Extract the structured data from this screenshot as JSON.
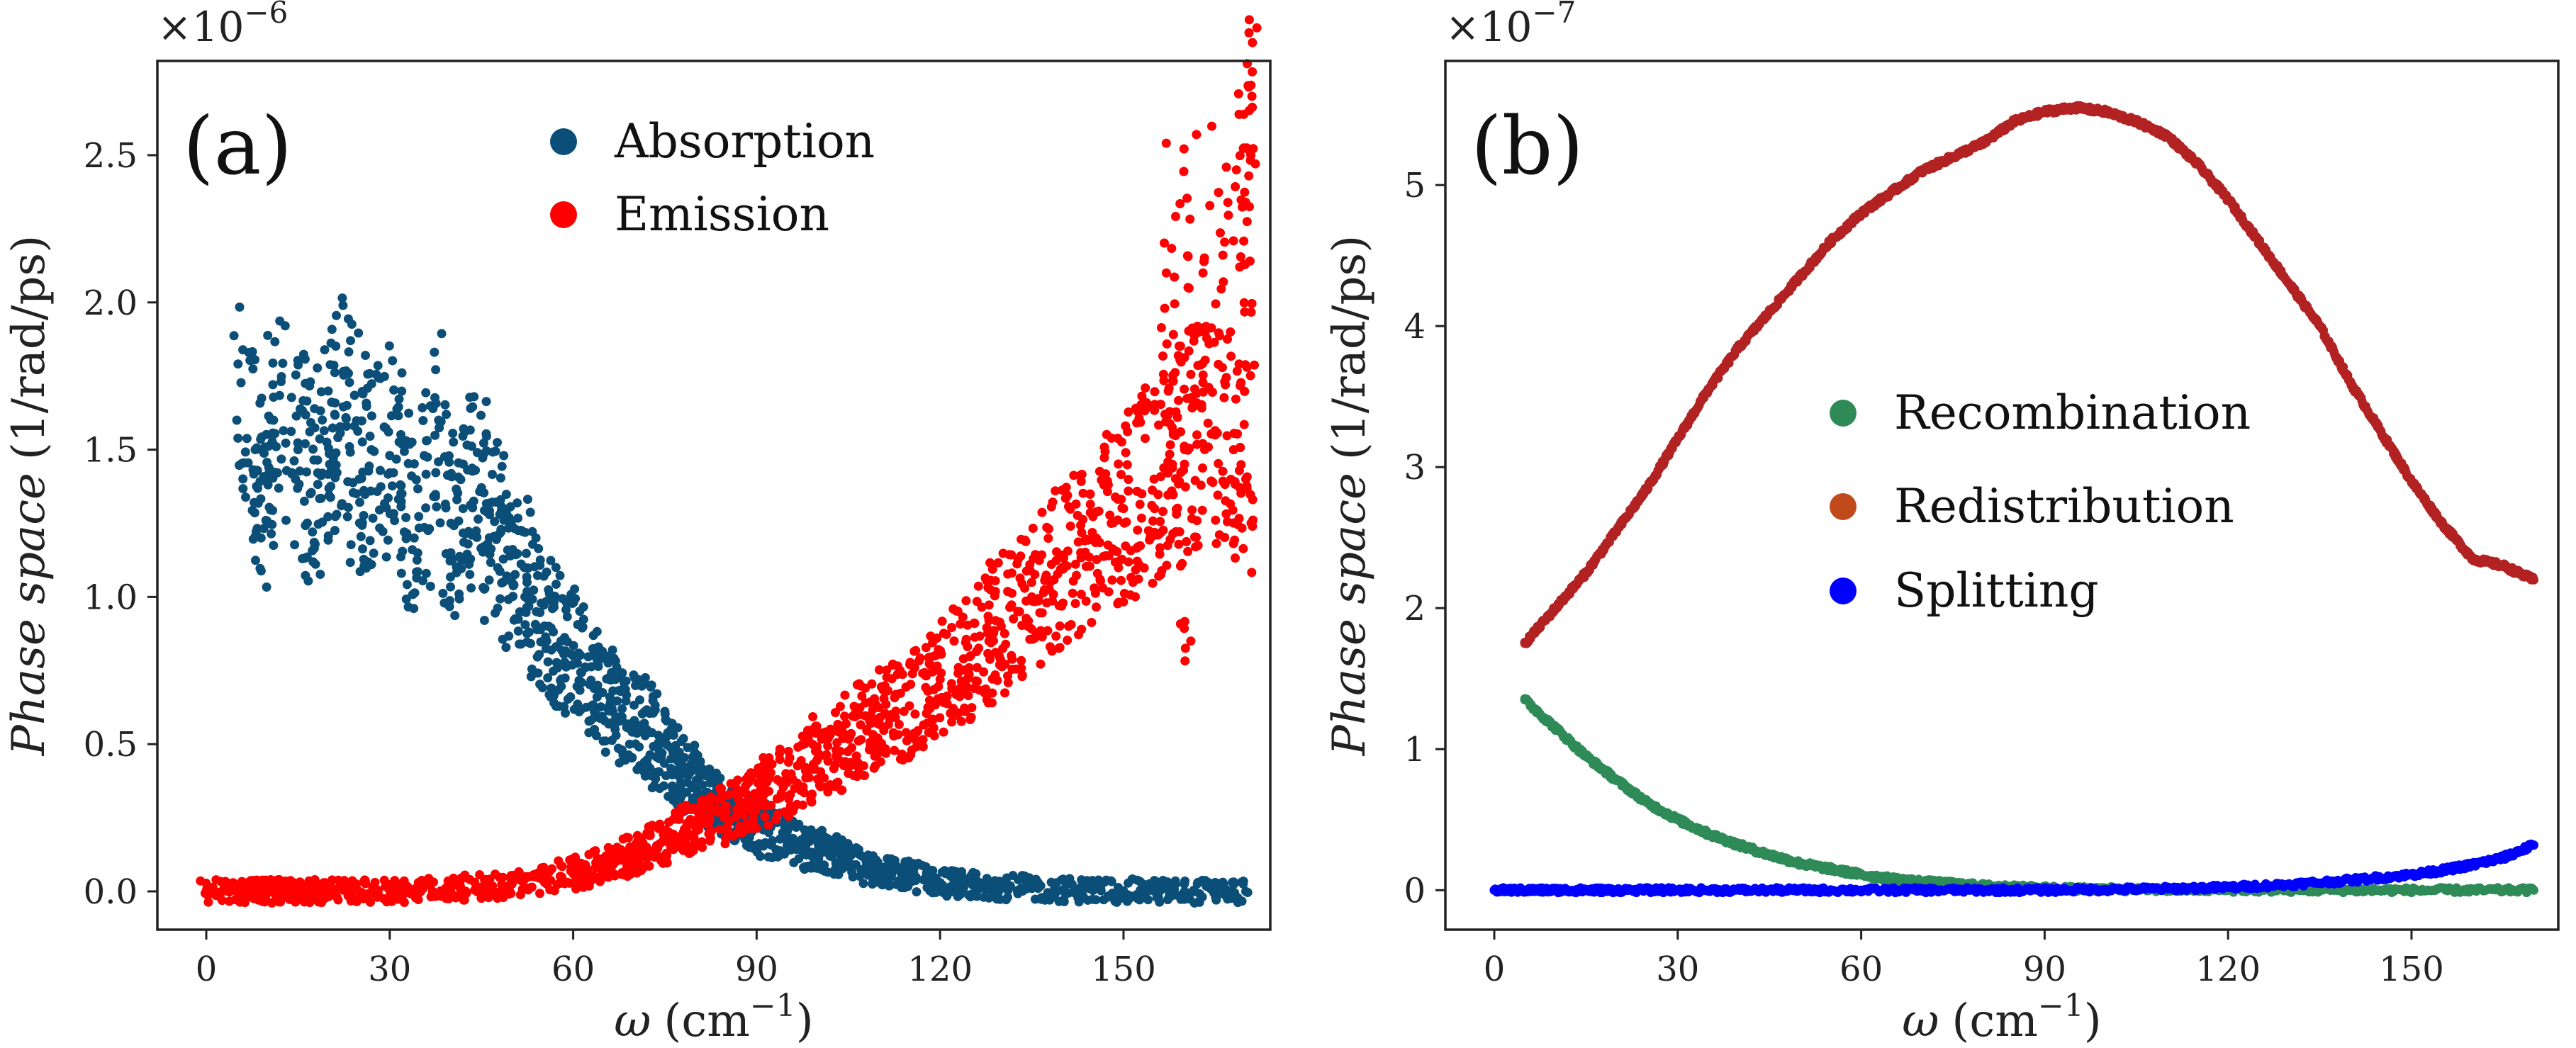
{
  "chart_data": [
    {
      "type": "scatter",
      "panel_label": "(a)",
      "exponent_label": "×10",
      "exponent_power": "−6",
      "xlabel_symbol": "ω",
      "xlabel_unit": "(cm",
      "xlabel_unit_power": "−1",
      "xlabel_close": ")",
      "ylabel_italic": "Phase space",
      "ylabel_unit": "(1/rad/ps)",
      "xlim": [
        -8,
        174
      ],
      "ylim": [
        -0.13,
        2.82
      ],
      "x_ticks": [
        0,
        30,
        60,
        90,
        120,
        150
      ],
      "x_tick_labels": [
        "0",
        "30",
        "60",
        "90",
        "120",
        "150"
      ],
      "y_ticks": [
        0,
        0.5,
        1.0,
        1.5,
        2.0,
        2.5
      ],
      "y_tick_labels": [
        "0.0",
        "0.5",
        "1.0",
        "1.5",
        "2.0",
        "2.5"
      ],
      "legend_position": "top-center",
      "series": [
        {
          "name": "Absorption",
          "color": "#0b4f79",
          "points": [
            [
              5,
              1.6
            ],
            [
              8,
              1.5
            ],
            [
              10,
              1.25
            ],
            [
              11,
              1.6
            ],
            [
              15,
              1.5
            ],
            [
              17,
              1.35
            ],
            [
              19,
              1.42
            ],
            [
              21,
              1.62
            ],
            [
              23,
              1.65
            ],
            [
              25,
              1.4
            ],
            [
              27,
              1.5
            ],
            [
              30,
              1.48
            ],
            [
              32,
              1.35
            ],
            [
              34,
              1.2
            ],
            [
              38,
              1.6
            ],
            [
              40,
              1.25
            ],
            [
              42,
              1.3
            ],
            [
              44,
              1.43
            ],
            [
              46,
              1.18
            ],
            [
              48,
              1.28
            ],
            [
              50,
              1.05
            ],
            [
              52,
              1.1
            ],
            [
              54,
              0.95
            ],
            [
              56,
              0.9
            ],
            [
              58,
              0.85
            ],
            [
              60,
              0.8
            ],
            [
              62,
              0.76
            ],
            [
              64,
              0.7
            ],
            [
              66,
              0.66
            ],
            [
              68,
              0.62
            ],
            [
              70,
              0.58
            ],
            [
              72,
              0.55
            ],
            [
              74,
              0.5
            ],
            [
              76,
              0.45
            ],
            [
              78,
              0.4
            ],
            [
              80,
              0.36
            ],
            [
              82,
              0.32
            ],
            [
              84,
              0.29
            ],
            [
              86,
              0.26
            ],
            [
              88,
              0.24
            ],
            [
              90,
              0.22
            ],
            [
              92,
              0.2
            ],
            [
              95,
              0.17
            ],
            [
              98,
              0.15
            ],
            [
              100,
              0.14
            ],
            [
              102,
              0.12
            ],
            [
              105,
              0.1
            ],
            [
              108,
              0.08
            ],
            [
              110,
              0.07
            ],
            [
              112,
              0.06
            ],
            [
              115,
              0.05
            ],
            [
              118,
              0.04
            ],
            [
              120,
              0.03
            ],
            [
              123,
              0.025
            ],
            [
              126,
              0.02
            ],
            [
              130,
              0.015
            ],
            [
              135,
              0.01
            ],
            [
              140,
              0.005
            ],
            [
              145,
              0.003
            ],
            [
              150,
              0.002
            ],
            [
              155,
              0.001
            ],
            [
              160,
              0.0
            ],
            [
              165,
              0.0
            ],
            [
              170,
              0.0
            ]
          ]
        },
        {
          "name": "Emission",
          "color": "#ff0000",
          "points": [
            [
              0,
              0.0
            ],
            [
              5,
              0.0
            ],
            [
              8,
              0.0
            ],
            [
              10,
              0.0
            ],
            [
              12,
              0.0
            ],
            [
              15,
              0.0
            ],
            [
              18,
              0.0
            ],
            [
              20,
              0.0
            ],
            [
              25,
              0.0
            ],
            [
              30,
              0.002
            ],
            [
              35,
              0.005
            ],
            [
              40,
              0.01
            ],
            [
              45,
              0.015
            ],
            [
              50,
              0.025
            ],
            [
              55,
              0.04
            ],
            [
              60,
              0.06
            ],
            [
              62,
              0.07
            ],
            [
              65,
              0.09
            ],
            [
              68,
              0.11
            ],
            [
              70,
              0.13
            ],
            [
              72,
              0.15
            ],
            [
              75,
              0.17
            ],
            [
              78,
              0.2
            ],
            [
              80,
              0.22
            ],
            [
              82,
              0.24
            ],
            [
              85,
              0.27
            ],
            [
              88,
              0.3
            ],
            [
              90,
              0.32
            ],
            [
              92,
              0.34
            ],
            [
              95,
              0.37
            ],
            [
              98,
              0.41
            ],
            [
              100,
              0.45
            ],
            [
              103,
              0.48
            ],
            [
              105,
              0.52
            ],
            [
              108,
              0.55
            ],
            [
              110,
              0.58
            ],
            [
              112,
              0.6
            ],
            [
              115,
              0.63
            ],
            [
              118,
              0.68
            ],
            [
              120,
              0.72
            ],
            [
              123,
              0.76
            ],
            [
              125,
              0.8
            ],
            [
              128,
              0.85
            ],
            [
              130,
              0.9
            ],
            [
              133,
              0.95
            ],
            [
              135,
              1.0
            ],
            [
              138,
              1.05
            ],
            [
              140,
              1.1
            ],
            [
              143,
              1.15
            ],
            [
              145,
              1.2
            ],
            [
              148,
              1.25
            ],
            [
              150,
              1.3
            ],
            [
              153,
              1.35
            ],
            [
              155,
              1.4
            ],
            [
              158,
              1.45
            ],
            [
              160,
              1.5
            ],
            [
              162,
              1.55
            ],
            [
              165,
              1.55
            ],
            [
              168,
              1.5
            ],
            [
              170,
              1.4
            ],
            [
              171,
              2.7
            ],
            [
              169,
              2.12
            ],
            [
              163,
              2.1
            ],
            [
              157,
              2.1
            ],
            [
              161,
              0.85
            ]
          ]
        }
      ]
    },
    {
      "type": "scatter",
      "panel_label": "(b)",
      "exponent_label": "×10",
      "exponent_power": "−7",
      "xlabel_symbol": "ω",
      "xlabel_unit": "(cm",
      "xlabel_unit_power": "−1",
      "xlabel_close": ")",
      "ylabel_italic": "Phase space",
      "ylabel_unit": "(1/rad/ps)",
      "xlim": [
        -8,
        174
      ],
      "ylim": [
        -0.28,
        5.88
      ],
      "x_ticks": [
        0,
        30,
        60,
        90,
        120,
        150
      ],
      "x_tick_labels": [
        "0",
        "30",
        "60",
        "90",
        "120",
        "150"
      ],
      "y_ticks": [
        0,
        1,
        2,
        3,
        4,
        5
      ],
      "y_tick_labels": [
        "0",
        "1",
        "2",
        "3",
        "4",
        "5"
      ],
      "legend_position": "center",
      "series": [
        {
          "name": "Recombination",
          "color": "#2e8b57",
          "points": [
            [
              5,
              1.35
            ],
            [
              10,
              1.15
            ],
            [
              15,
              0.95
            ],
            [
              20,
              0.78
            ],
            [
              25,
              0.62
            ],
            [
              30,
              0.5
            ],
            [
              35,
              0.4
            ],
            [
              40,
              0.32
            ],
            [
              45,
              0.25
            ],
            [
              50,
              0.19
            ],
            [
              55,
              0.15
            ],
            [
              60,
              0.11
            ],
            [
              65,
              0.08
            ],
            [
              70,
              0.06
            ],
            [
              75,
              0.045
            ],
            [
              80,
              0.03
            ],
            [
              85,
              0.02
            ],
            [
              90,
              0.015
            ],
            [
              95,
              0.01
            ],
            [
              100,
              0.007
            ],
            [
              110,
              0.004
            ],
            [
              120,
              0.002
            ],
            [
              130,
              0.001
            ],
            [
              140,
              0.0
            ],
            [
              150,
              0.0
            ],
            [
              160,
              0.0
            ],
            [
              170,
              0.0
            ]
          ]
        },
        {
          "name": "Redistribution",
          "color": "#b22222",
          "legend_color": "#c04a1c",
          "points": [
            [
              5,
              1.75
            ],
            [
              10,
              2.0
            ],
            [
              15,
              2.25
            ],
            [
              20,
              2.55
            ],
            [
              25,
              2.85
            ],
            [
              30,
              3.2
            ],
            [
              35,
              3.55
            ],
            [
              40,
              3.85
            ],
            [
              45,
              4.1
            ],
            [
              50,
              4.35
            ],
            [
              55,
              4.6
            ],
            [
              60,
              4.8
            ],
            [
              65,
              4.95
            ],
            [
              70,
              5.1
            ],
            [
              75,
              5.2
            ],
            [
              80,
              5.3
            ],
            [
              85,
              5.45
            ],
            [
              90,
              5.52
            ],
            [
              95,
              5.55
            ],
            [
              100,
              5.52
            ],
            [
              105,
              5.45
            ],
            [
              110,
              5.35
            ],
            [
              115,
              5.15
            ],
            [
              120,
              4.9
            ],
            [
              125,
              4.6
            ],
            [
              130,
              4.3
            ],
            [
              135,
              4.0
            ],
            [
              140,
              3.6
            ],
            [
              145,
              3.25
            ],
            [
              150,
              2.9
            ],
            [
              155,
              2.6
            ],
            [
              160,
              2.35
            ],
            [
              165,
              2.3
            ],
            [
              170,
              2.2
            ]
          ]
        },
        {
          "name": "Splitting",
          "color": "#0000ff",
          "points": [
            [
              0,
              0.0
            ],
            [
              5,
              0.0
            ],
            [
              10,
              0.0
            ],
            [
              15,
              0.0
            ],
            [
              20,
              0.0
            ],
            [
              30,
              0.0
            ],
            [
              40,
              0.0
            ],
            [
              50,
              0.0
            ],
            [
              60,
              0.0
            ],
            [
              70,
              0.0
            ],
            [
              80,
              0.0
            ],
            [
              90,
              0.0
            ],
            [
              100,
              0.005
            ],
            [
              110,
              0.01
            ],
            [
              120,
              0.02
            ],
            [
              130,
              0.04
            ],
            [
              140,
              0.07
            ],
            [
              150,
              0.11
            ],
            [
              155,
              0.14
            ],
            [
              160,
              0.18
            ],
            [
              165,
              0.23
            ],
            [
              170,
              0.32
            ]
          ]
        }
      ]
    }
  ]
}
